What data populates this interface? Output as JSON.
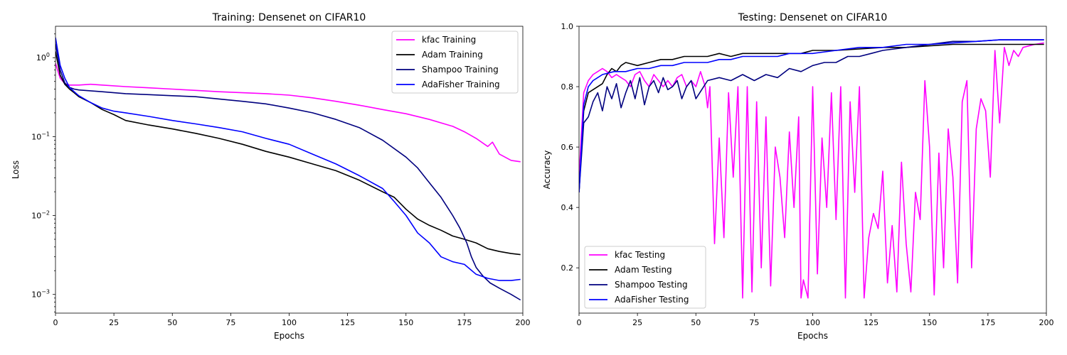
{
  "chart_data": [
    {
      "type": "line",
      "title": "Training: Densenet on CIFAR10",
      "xlabel": "Epochs",
      "ylabel": "Loss",
      "xlim": [
        0,
        200
      ],
      "ylim": [
        0.00058,
        2.5
      ],
      "yscale": "log",
      "xticks": [
        "0",
        "25",
        "50",
        "75",
        "100",
        "125",
        "150",
        "175",
        "200"
      ],
      "yticks": [
        {
          "value": 1,
          "base": "10",
          "exp": "0"
        },
        {
          "value": 0.1,
          "base": "10",
          "exp": "−1"
        },
        {
          "value": 0.01,
          "base": "10",
          "exp": "−2"
        },
        {
          "value": 0.001,
          "base": "10",
          "exp": "−3"
        }
      ],
      "legend_position": "top-right",
      "series": [
        {
          "name": "kfac Training",
          "color": "#ff00ff",
          "x": [
            0,
            2,
            4,
            6,
            8,
            10,
            15,
            20,
            30,
            40,
            50,
            60,
            70,
            80,
            90,
            100,
            110,
            120,
            130,
            140,
            150,
            160,
            170,
            175,
            180,
            185,
            187,
            190,
            195,
            199
          ],
          "y": [
            0.85,
            0.55,
            0.47,
            0.45,
            0.45,
            0.45,
            0.46,
            0.45,
            0.43,
            0.415,
            0.4,
            0.385,
            0.37,
            0.36,
            0.35,
            0.335,
            0.31,
            0.28,
            0.25,
            0.22,
            0.195,
            0.165,
            0.135,
            0.115,
            0.095,
            0.075,
            0.085,
            0.06,
            0.05,
            0.048
          ]
        },
        {
          "name": "Adam Training",
          "color": "#000000",
          "x": [
            0,
            2,
            4,
            6,
            8,
            10,
            15,
            20,
            25,
            30,
            40,
            50,
            60,
            70,
            80,
            90,
            100,
            110,
            120,
            130,
            140,
            145,
            150,
            155,
            160,
            165,
            170,
            175,
            180,
            185,
            190,
            195,
            199
          ],
          "y": [
            1.2,
            0.6,
            0.46,
            0.4,
            0.36,
            0.32,
            0.27,
            0.22,
            0.19,
            0.16,
            0.14,
            0.125,
            0.11,
            0.095,
            0.08,
            0.065,
            0.055,
            0.045,
            0.037,
            0.028,
            0.02,
            0.017,
            0.012,
            0.009,
            0.0075,
            0.0065,
            0.0055,
            0.005,
            0.0045,
            0.0038,
            0.0035,
            0.0033,
            0.0032
          ]
        },
        {
          "name": "Shampoo Training",
          "color": "#00007f",
          "x": [
            0,
            2,
            4,
            6,
            8,
            10,
            15,
            20,
            30,
            40,
            50,
            60,
            70,
            80,
            90,
            100,
            110,
            120,
            130,
            140,
            150,
            155,
            160,
            165,
            170,
            173,
            176,
            178,
            180,
            183,
            186,
            190,
            195,
            199
          ],
          "y": [
            1.5,
            0.7,
            0.48,
            0.42,
            0.4,
            0.39,
            0.38,
            0.37,
            0.35,
            0.34,
            0.33,
            0.32,
            0.3,
            0.28,
            0.26,
            0.23,
            0.2,
            0.165,
            0.13,
            0.09,
            0.055,
            0.04,
            0.026,
            0.017,
            0.01,
            0.007,
            0.0045,
            0.003,
            0.0022,
            0.0017,
            0.0014,
            0.0012,
            0.001,
            0.00085
          ]
        },
        {
          "name": "AdaFisher Training",
          "color": "#0000ff",
          "x": [
            0,
            2,
            4,
            6,
            8,
            10,
            15,
            20,
            25,
            30,
            40,
            50,
            60,
            70,
            80,
            90,
            100,
            110,
            120,
            130,
            140,
            145,
            150,
            155,
            160,
            165,
            170,
            175,
            180,
            185,
            190,
            195,
            199
          ],
          "y": [
            1.8,
            0.8,
            0.55,
            0.42,
            0.37,
            0.33,
            0.27,
            0.23,
            0.21,
            0.2,
            0.18,
            0.16,
            0.145,
            0.13,
            0.115,
            0.095,
            0.08,
            0.06,
            0.045,
            0.032,
            0.022,
            0.015,
            0.01,
            0.006,
            0.0045,
            0.003,
            0.0026,
            0.0024,
            0.0018,
            0.0016,
            0.0015,
            0.0015,
            0.00155
          ]
        }
      ]
    },
    {
      "type": "line",
      "title": "Testing: Densenet on CIFAR10",
      "xlabel": "Epochs",
      "ylabel": "Accuracy",
      "xlim": [
        0,
        200
      ],
      "ylim": [
        0.05,
        1.0
      ],
      "xticks": [
        "0",
        "25",
        "50",
        "75",
        "100",
        "125",
        "150",
        "175",
        "200"
      ],
      "yticks": [
        "0.2",
        "0.4",
        "0.6",
        "0.8",
        "1.0"
      ],
      "legend_position": "bottom-left",
      "series": [
        {
          "name": "kfac Testing",
          "color": "#ff00ff",
          "x": [
            0,
            2,
            4,
            6,
            8,
            10,
            12,
            14,
            16,
            18,
            20,
            22,
            24,
            26,
            28,
            30,
            32,
            34,
            36,
            38,
            40,
            42,
            44,
            46,
            48,
            50,
            52,
            54,
            55,
            56,
            58,
            60,
            62,
            64,
            66,
            68,
            70,
            72,
            74,
            76,
            78,
            80,
            82,
            84,
            86,
            88,
            90,
            92,
            94,
            95,
            96,
            98,
            100,
            102,
            104,
            106,
            108,
            110,
            112,
            114,
            116,
            118,
            120,
            122,
            124,
            126,
            128,
            130,
            132,
            134,
            136,
            138,
            140,
            142,
            144,
            146,
            148,
            150,
            152,
            154,
            156,
            158,
            160,
            162,
            164,
            166,
            168,
            170,
            172,
            174,
            176,
            178,
            180,
            182,
            184,
            186,
            188,
            190,
            195,
            199
          ],
          "y": [
            0.5,
            0.78,
            0.82,
            0.84,
            0.85,
            0.86,
            0.85,
            0.83,
            0.84,
            0.83,
            0.82,
            0.8,
            0.84,
            0.85,
            0.82,
            0.8,
            0.84,
            0.82,
            0.8,
            0.82,
            0.8,
            0.83,
            0.84,
            0.8,
            0.82,
            0.8,
            0.85,
            0.8,
            0.73,
            0.8,
            0.28,
            0.63,
            0.3,
            0.78,
            0.5,
            0.8,
            0.1,
            0.8,
            0.12,
            0.75,
            0.2,
            0.7,
            0.14,
            0.6,
            0.5,
            0.3,
            0.65,
            0.4,
            0.7,
            0.1,
            0.16,
            0.1,
            0.8,
            0.18,
            0.63,
            0.4,
            0.78,
            0.36,
            0.8,
            0.1,
            0.75,
            0.45,
            0.8,
            0.1,
            0.3,
            0.38,
            0.33,
            0.52,
            0.15,
            0.34,
            0.12,
            0.55,
            0.28,
            0.12,
            0.45,
            0.36,
            0.82,
            0.6,
            0.11,
            0.58,
            0.2,
            0.66,
            0.5,
            0.15,
            0.75,
            0.82,
            0.2,
            0.66,
            0.76,
            0.72,
            0.5,
            0.92,
            0.68,
            0.93,
            0.87,
            0.92,
            0.9,
            0.93,
            0.94,
            0.945
          ]
        },
        {
          "name": "Adam Testing",
          "color": "#000000",
          "x": [
            0,
            2,
            4,
            6,
            8,
            10,
            12,
            14,
            16,
            18,
            20,
            25,
            30,
            35,
            40,
            45,
            50,
            55,
            60,
            65,
            70,
            75,
            80,
            85,
            90,
            95,
            100,
            110,
            120,
            130,
            140,
            150,
            160,
            170,
            180,
            190,
            199
          ],
          "y": [
            0.45,
            0.72,
            0.78,
            0.79,
            0.8,
            0.81,
            0.84,
            0.86,
            0.85,
            0.87,
            0.88,
            0.87,
            0.88,
            0.89,
            0.89,
            0.9,
            0.9,
            0.9,
            0.91,
            0.9,
            0.91,
            0.91,
            0.91,
            0.91,
            0.91,
            0.91,
            0.92,
            0.92,
            0.925,
            0.93,
            0.93,
            0.935,
            0.94,
            0.94,
            0.94,
            0.94,
            0.94
          ]
        },
        {
          "name": "Shampoo Testing",
          "color": "#00007f",
          "x": [
            0,
            2,
            4,
            6,
            8,
            10,
            12,
            14,
            16,
            18,
            20,
            22,
            24,
            26,
            28,
            30,
            32,
            34,
            36,
            38,
            40,
            42,
            44,
            46,
            48,
            50,
            55,
            60,
            65,
            70,
            75,
            80,
            85,
            90,
            95,
            100,
            105,
            110,
            115,
            120,
            125,
            130,
            140,
            150,
            160,
            170,
            180,
            190,
            199
          ],
          "y": [
            0.45,
            0.68,
            0.7,
            0.75,
            0.78,
            0.72,
            0.8,
            0.76,
            0.81,
            0.73,
            0.78,
            0.82,
            0.76,
            0.83,
            0.74,
            0.8,
            0.82,
            0.78,
            0.83,
            0.79,
            0.8,
            0.82,
            0.76,
            0.8,
            0.82,
            0.76,
            0.82,
            0.83,
            0.82,
            0.84,
            0.82,
            0.84,
            0.83,
            0.86,
            0.85,
            0.87,
            0.88,
            0.88,
            0.9,
            0.9,
            0.91,
            0.92,
            0.93,
            0.94,
            0.95,
            0.95,
            0.955,
            0.955,
            0.955
          ]
        },
        {
          "name": "AdaFisher Testing",
          "color": "#0000ff",
          "x": [
            0,
            2,
            4,
            6,
            8,
            10,
            15,
            20,
            25,
            30,
            35,
            40,
            45,
            50,
            55,
            60,
            65,
            70,
            75,
            80,
            85,
            90,
            95,
            100,
            110,
            120,
            130,
            140,
            150,
            160,
            170,
            180,
            190,
            199
          ],
          "y": [
            0.45,
            0.74,
            0.8,
            0.82,
            0.83,
            0.84,
            0.85,
            0.85,
            0.86,
            0.86,
            0.87,
            0.87,
            0.88,
            0.88,
            0.88,
            0.89,
            0.89,
            0.9,
            0.9,
            0.9,
            0.9,
            0.91,
            0.91,
            0.91,
            0.92,
            0.93,
            0.93,
            0.94,
            0.94,
            0.945,
            0.95,
            0.955,
            0.955,
            0.955
          ]
        }
      ]
    }
  ]
}
